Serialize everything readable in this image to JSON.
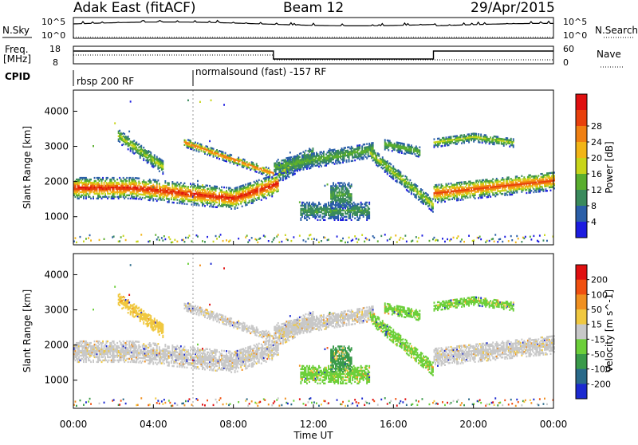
{
  "header": {
    "station": "Adak East (fitACF)",
    "beam": "Beam 12",
    "date": "29/Apr/2015"
  },
  "noise_panel": {
    "left_label": "N.Sky",
    "right_label": "N.Search",
    "left_ticks": [
      "10^5",
      "10^0"
    ],
    "right_ticks": [
      "10^5",
      "10^0"
    ]
  },
  "freq_panel": {
    "left_label_1": "Freq.",
    "left_label_2": "[MHz]",
    "left_ticks": [
      "18",
      "8"
    ],
    "right_label": "Nave",
    "right_ticks": [
      "60",
      "0"
    ]
  },
  "cpid": {
    "label": "CPID",
    "programs": [
      "rbsp 200 RF",
      "normalsound (fast) -157 RF"
    ]
  },
  "chart_data": [
    {
      "type": "heatmap",
      "title": "Power",
      "ylabel": "Slant Range [km]",
      "xlabel": "",
      "yticks": [
        "1000",
        "2000",
        "3000",
        "4000"
      ],
      "ylim": [
        200,
        4600
      ],
      "colorbar_label": "Power [dB]",
      "colorbar_ticks": [
        "4",
        "8",
        "12",
        "16",
        "20",
        "24",
        "28"
      ],
      "colorbar_colors": [
        "#1c1ce0",
        "#2b5fa8",
        "#3a8a5c",
        "#5aae2e",
        "#c8d51a",
        "#f2b516",
        "#f08012",
        "#e8400c",
        "#e01010"
      ]
    },
    {
      "type": "heatmap",
      "title": "Velocity",
      "ylabel": "Slant Range [km]",
      "xlabel": "Time UT",
      "yticks": [
        "1000",
        "2000",
        "3000",
        "4000"
      ],
      "ylim": [
        200,
        4600
      ],
      "xticks": [
        "00:00",
        "04:00",
        "08:00",
        "12:00",
        "16:00",
        "20:00",
        "00:00"
      ],
      "colorbar_label": "Velocity [m s^-1]",
      "colorbar_ticks": [
        "200",
        "100",
        "50",
        "15",
        "-15",
        "-50",
        "-100",
        "-200"
      ],
      "colorbar_colors": [
        "#1c2ad0",
        "#2a6a8a",
        "#3a9a4a",
        "#6ccf3a",
        "#c8c8c8",
        "#f0c840",
        "#f09020",
        "#f05010",
        "#e01010"
      ]
    }
  ]
}
